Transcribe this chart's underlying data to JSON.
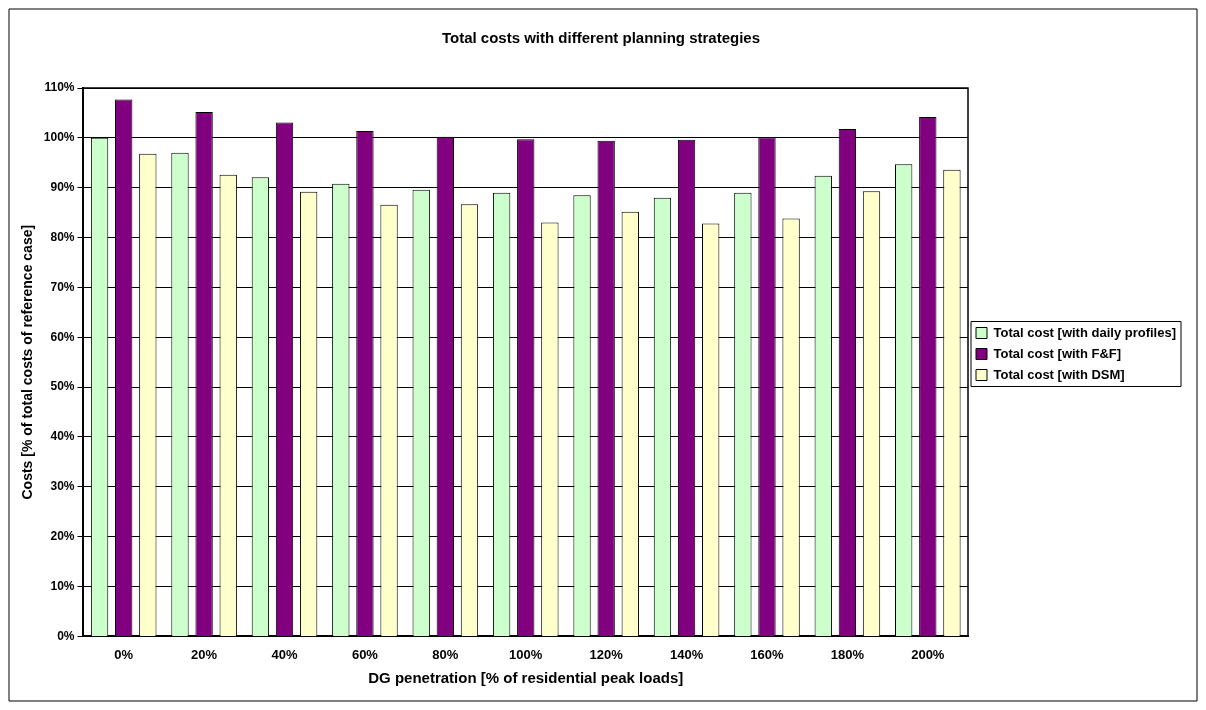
{
  "chart_data": {
    "type": "bar",
    "title": "Total costs with different planning strategies",
    "xlabel": "DG penetration [% of residential peak loads]",
    "ylabel": "Costs [% of total costs of reference case]",
    "categories": [
      "0%",
      "20%",
      "40%",
      "60%",
      "80%",
      "100%",
      "120%",
      "140%",
      "160%",
      "180%",
      "200%"
    ],
    "series": [
      {
        "name": "Total cost [with daily profiles]",
        "color": "#ccffcc",
        "values": [
          100,
          97.0,
          92.1,
          90.8,
          89.6,
          89.0,
          88.5,
          88.0,
          89.0,
          92.4,
          94.7
        ]
      },
      {
        "name": "Total cost [with F&F]",
        "color": "#800080",
        "values": [
          107.7,
          105.2,
          103.1,
          101.4,
          100.2,
          99.7,
          99.4,
          99.6,
          100.1,
          101.8,
          104.2
        ]
      },
      {
        "name": "Total cost [with DSM]",
        "color": "#ffffcc",
        "values": [
          96.8,
          92.6,
          89.2,
          86.6,
          86.7,
          83.0,
          85.2,
          82.8,
          83.8,
          89.3,
          93.6
        ]
      }
    ],
    "ylim": [
      0,
      110
    ],
    "yticks": [
      {
        "value": 0,
        "label": "0%"
      },
      {
        "value": 10,
        "label": "10%"
      },
      {
        "value": 20,
        "label": "20%"
      },
      {
        "value": 30,
        "label": "30%"
      },
      {
        "value": 40,
        "label": "40%"
      },
      {
        "value": 50,
        "label": "50%"
      },
      {
        "value": 60,
        "label": "60%"
      },
      {
        "value": 70,
        "label": "70%"
      },
      {
        "value": 80,
        "label": "80%"
      },
      {
        "value": 90,
        "label": "90%"
      },
      {
        "value": 100,
        "label": "100%"
      },
      {
        "value": 110,
        "label": "110%"
      }
    ],
    "grid": "y",
    "legend": "right"
  }
}
